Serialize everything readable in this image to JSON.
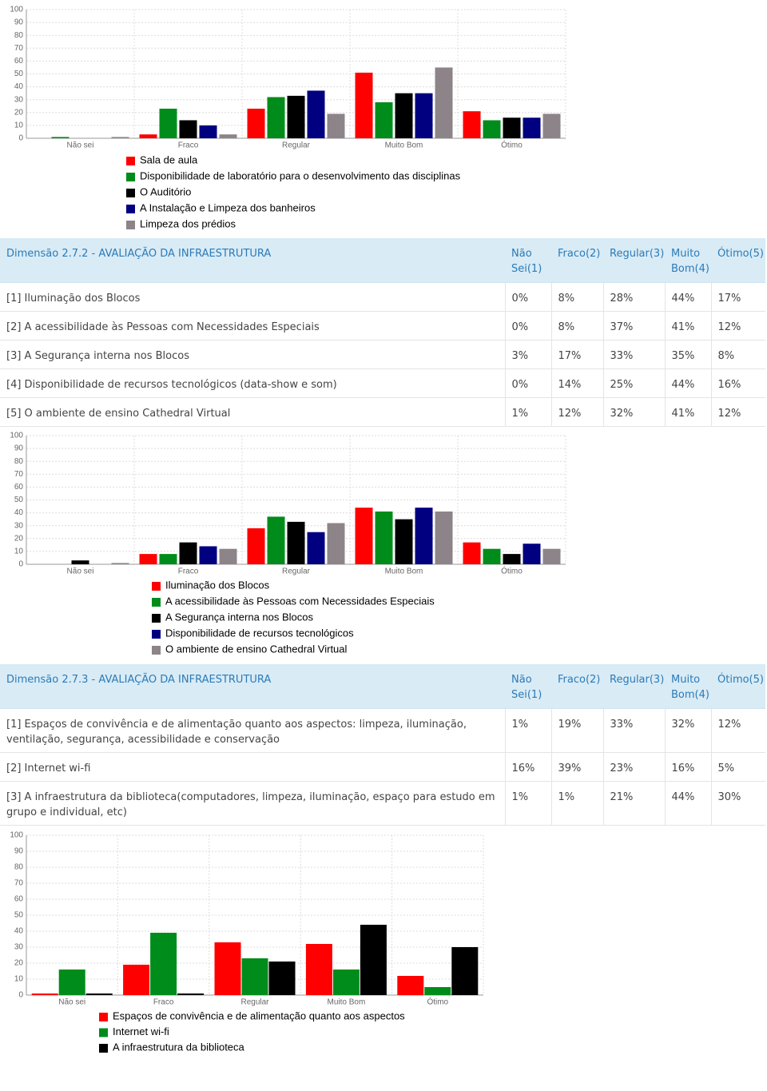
{
  "chart_data": [
    {
      "type": "bar",
      "categories": [
        "Não sei",
        "Fraco",
        "Regular",
        "Muito Bom",
        "Ótimo"
      ],
      "ylim": [
        0,
        100
      ],
      "yticks": [
        0,
        10,
        20,
        30,
        40,
        50,
        60,
        70,
        80,
        90,
        100
      ],
      "grid": true,
      "series": [
        {
          "name": "Sala de aula",
          "color": "#ff0000",
          "values": [
            0,
            3,
            23,
            51,
            21
          ]
        },
        {
          "name": "Disponibilidade de laboratório para o desenvolvimento das disciplinas",
          "color": "#008c1a",
          "values": [
            1,
            23,
            32,
            28,
            14
          ]
        },
        {
          "name": "O Auditório",
          "color": "#000000",
          "values": [
            0,
            14,
            33,
            35,
            16
          ]
        },
        {
          "name": "A Instalação e Limpeza dos banheiros",
          "color": "#000080",
          "values": [
            0,
            10,
            37,
            35,
            16
          ]
        },
        {
          "name": "Limpeza dos prédios",
          "color": "#8c8488",
          "values": [
            1,
            3,
            19,
            55,
            19
          ]
        }
      ]
    },
    {
      "type": "bar",
      "categories": [
        "Não sei",
        "Fraco",
        "Regular",
        "Muito Bom",
        "Ótimo"
      ],
      "ylim": [
        0,
        100
      ],
      "yticks": [
        0,
        10,
        20,
        30,
        40,
        50,
        60,
        70,
        80,
        90,
        100
      ],
      "grid": true,
      "series": [
        {
          "name": "Iluminação dos Blocos",
          "color": "#ff0000",
          "values": [
            0,
            8,
            28,
            44,
            17
          ]
        },
        {
          "name": "A acessibilidade às Pessoas com Necessidades Especiais",
          "color": "#008c1a",
          "values": [
            0,
            8,
            37,
            41,
            12
          ]
        },
        {
          "name": "A Segurança interna nos Blocos",
          "color": "#000000",
          "values": [
            3,
            17,
            33,
            35,
            8
          ]
        },
        {
          "name": "Disponibilidade de recursos tecnológicos",
          "color": "#000080",
          "values": [
            0,
            14,
            25,
            44,
            16
          ]
        },
        {
          "name": "O ambiente de ensino Cathedral Virtual",
          "color": "#8c8488",
          "values": [
            1,
            12,
            32,
            41,
            12
          ]
        }
      ]
    },
    {
      "type": "bar",
      "categories": [
        "Não sei",
        "Fraco",
        "Regular",
        "Muito Bom",
        "Ótimo"
      ],
      "ylim": [
        0,
        100
      ],
      "yticks": [
        0,
        10,
        20,
        30,
        40,
        50,
        60,
        70,
        80,
        90,
        100
      ],
      "grid": true,
      "series": [
        {
          "name": "Espaços de convivência e de alimentação quanto aos aspectos",
          "color": "#ff0000",
          "values": [
            1,
            19,
            33,
            32,
            12
          ]
        },
        {
          "name": "Internet wi-fi",
          "color": "#008c1a",
          "values": [
            16,
            39,
            23,
            16,
            5
          ]
        },
        {
          "name": "A infraestrutura da biblioteca",
          "color": "#000000",
          "values": [
            1,
            1,
            21,
            44,
            30
          ]
        }
      ]
    }
  ],
  "tables": [
    {
      "header": [
        "Dimensão 2.7.2 - AVALIAÇÃO DA INFRAESTRUTURA",
        "Não Sei(1)",
        "Fraco(2)",
        "Regular(3)",
        "Muito Bom(4)",
        "Ótimo(5)"
      ],
      "rows": [
        [
          "[1] Iluminação dos Blocos",
          "0%",
          "8%",
          "28%",
          "44%",
          "17%"
        ],
        [
          "[2] A acessibilidade às Pessoas com Necessidades Especiais",
          "0%",
          "8%",
          "37%",
          "41%",
          "12%"
        ],
        [
          "[3] A Segurança interna nos Blocos",
          "3%",
          "17%",
          "33%",
          "35%",
          "8%"
        ],
        [
          "[4] Disponibilidade de recursos tecnológicos (data-show e som)",
          "0%",
          "14%",
          "25%",
          "44%",
          "16%"
        ],
        [
          "[5] O ambiente de ensino Cathedral Virtual",
          "1%",
          "12%",
          "32%",
          "41%",
          "12%"
        ]
      ]
    },
    {
      "header": [
        "Dimensão 2.7.3 - AVALIAÇÃO DA INFRAESTRUTURA",
        "Não Sei(1)",
        "Fraco(2)",
        "Regular(3)",
        "Muito Bom(4)",
        "Ótimo(5)"
      ],
      "rows": [
        [
          "[1] Espaços de convivência e de alimentação quanto aos aspectos: limpeza, iluminação, ventilação, segurança, acessibilidade e conservação",
          "1%",
          "19%",
          "33%",
          "32%",
          "12%"
        ],
        [
          "[2] Internet wi-fi",
          "16%",
          "39%",
          "23%",
          "16%",
          "5%"
        ],
        [
          "[3] A infraestrutura da biblioteca(computadores, limpeza, iluminação, espaço para estudo em grupo e individual, etc)",
          "1%",
          "1%",
          "21%",
          "44%",
          "30%"
        ]
      ]
    }
  ]
}
